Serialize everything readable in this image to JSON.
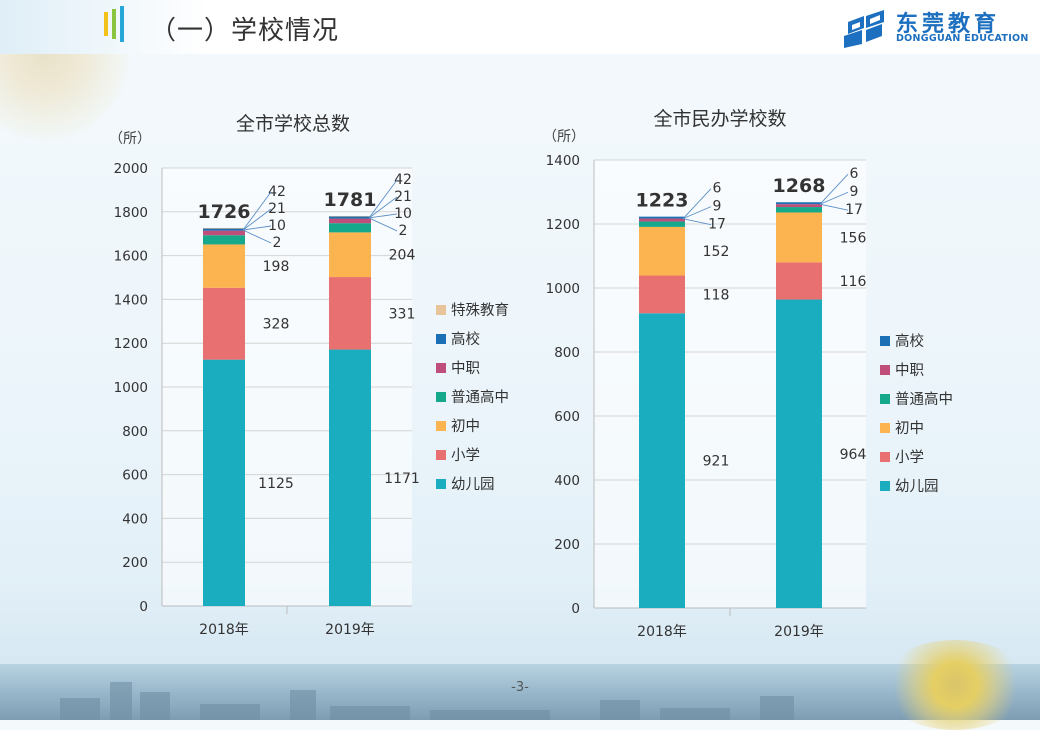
{
  "header": {
    "title": "（一）学校情况"
  },
  "logo": {
    "cn": "东莞教育",
    "en": "DONGGUAN EDUCATION"
  },
  "footer": {
    "page_number": "-3-"
  },
  "colors": {
    "幼儿园": "#1aadc0",
    "小学": "#e97070",
    "初中": "#fbb450",
    "普通高中": "#15a88a",
    "中职": "#c04e7a",
    "高校": "#1b6fb5",
    "特殊教育": "#e9c49a"
  },
  "chart_data": [
    {
      "type": "bar",
      "stacked": true,
      "title": "全市学校总数",
      "ylabel": "（所）",
      "categories": [
        "2018年",
        "2019年"
      ],
      "ylim": [
        0,
        2000
      ],
      "yticks": [
        0,
        200,
        400,
        600,
        800,
        1000,
        1200,
        1400,
        1600,
        1800,
        2000
      ],
      "totals": [
        "1726",
        "1781"
      ],
      "series": [
        {
          "name": "幼儿园",
          "values": [
            1125,
            1171
          ]
        },
        {
          "name": "小学",
          "values": [
            328,
            331
          ]
        },
        {
          "name": "初中",
          "values": [
            198,
            204
          ]
        },
        {
          "name": "普通高中",
          "values": [
            42,
            42
          ]
        },
        {
          "name": "中职",
          "values": [
            21,
            21
          ]
        },
        {
          "name": "高校",
          "values": [
            10,
            10
          ]
        },
        {
          "name": "特殊教育",
          "values": [
            2,
            2
          ]
        }
      ],
      "legend": [
        "特殊教育",
        "高校",
        "中职",
        "普通高中",
        "初中",
        "小学",
        "幼儿园"
      ]
    },
    {
      "type": "bar",
      "stacked": true,
      "title": "全市民办学校数",
      "ylabel": "（所）",
      "categories": [
        "2018年",
        "2019年"
      ],
      "ylim": [
        0,
        1400
      ],
      "yticks": [
        0,
        200,
        400,
        600,
        800,
        1000,
        1200,
        1400
      ],
      "totals": [
        "1223",
        "1268"
      ],
      "series": [
        {
          "name": "幼儿园",
          "values": [
            921,
            964
          ]
        },
        {
          "name": "小学",
          "values": [
            118,
            116
          ]
        },
        {
          "name": "初中",
          "values": [
            152,
            156
          ]
        },
        {
          "name": "普通高中",
          "values": [
            17,
            17
          ]
        },
        {
          "name": "中职",
          "values": [
            9,
            9
          ]
        },
        {
          "name": "高校",
          "values": [
            6,
            6
          ]
        }
      ],
      "legend": [
        "高校",
        "中职",
        "普通高中",
        "初中",
        "小学",
        "幼儿园"
      ]
    }
  ]
}
